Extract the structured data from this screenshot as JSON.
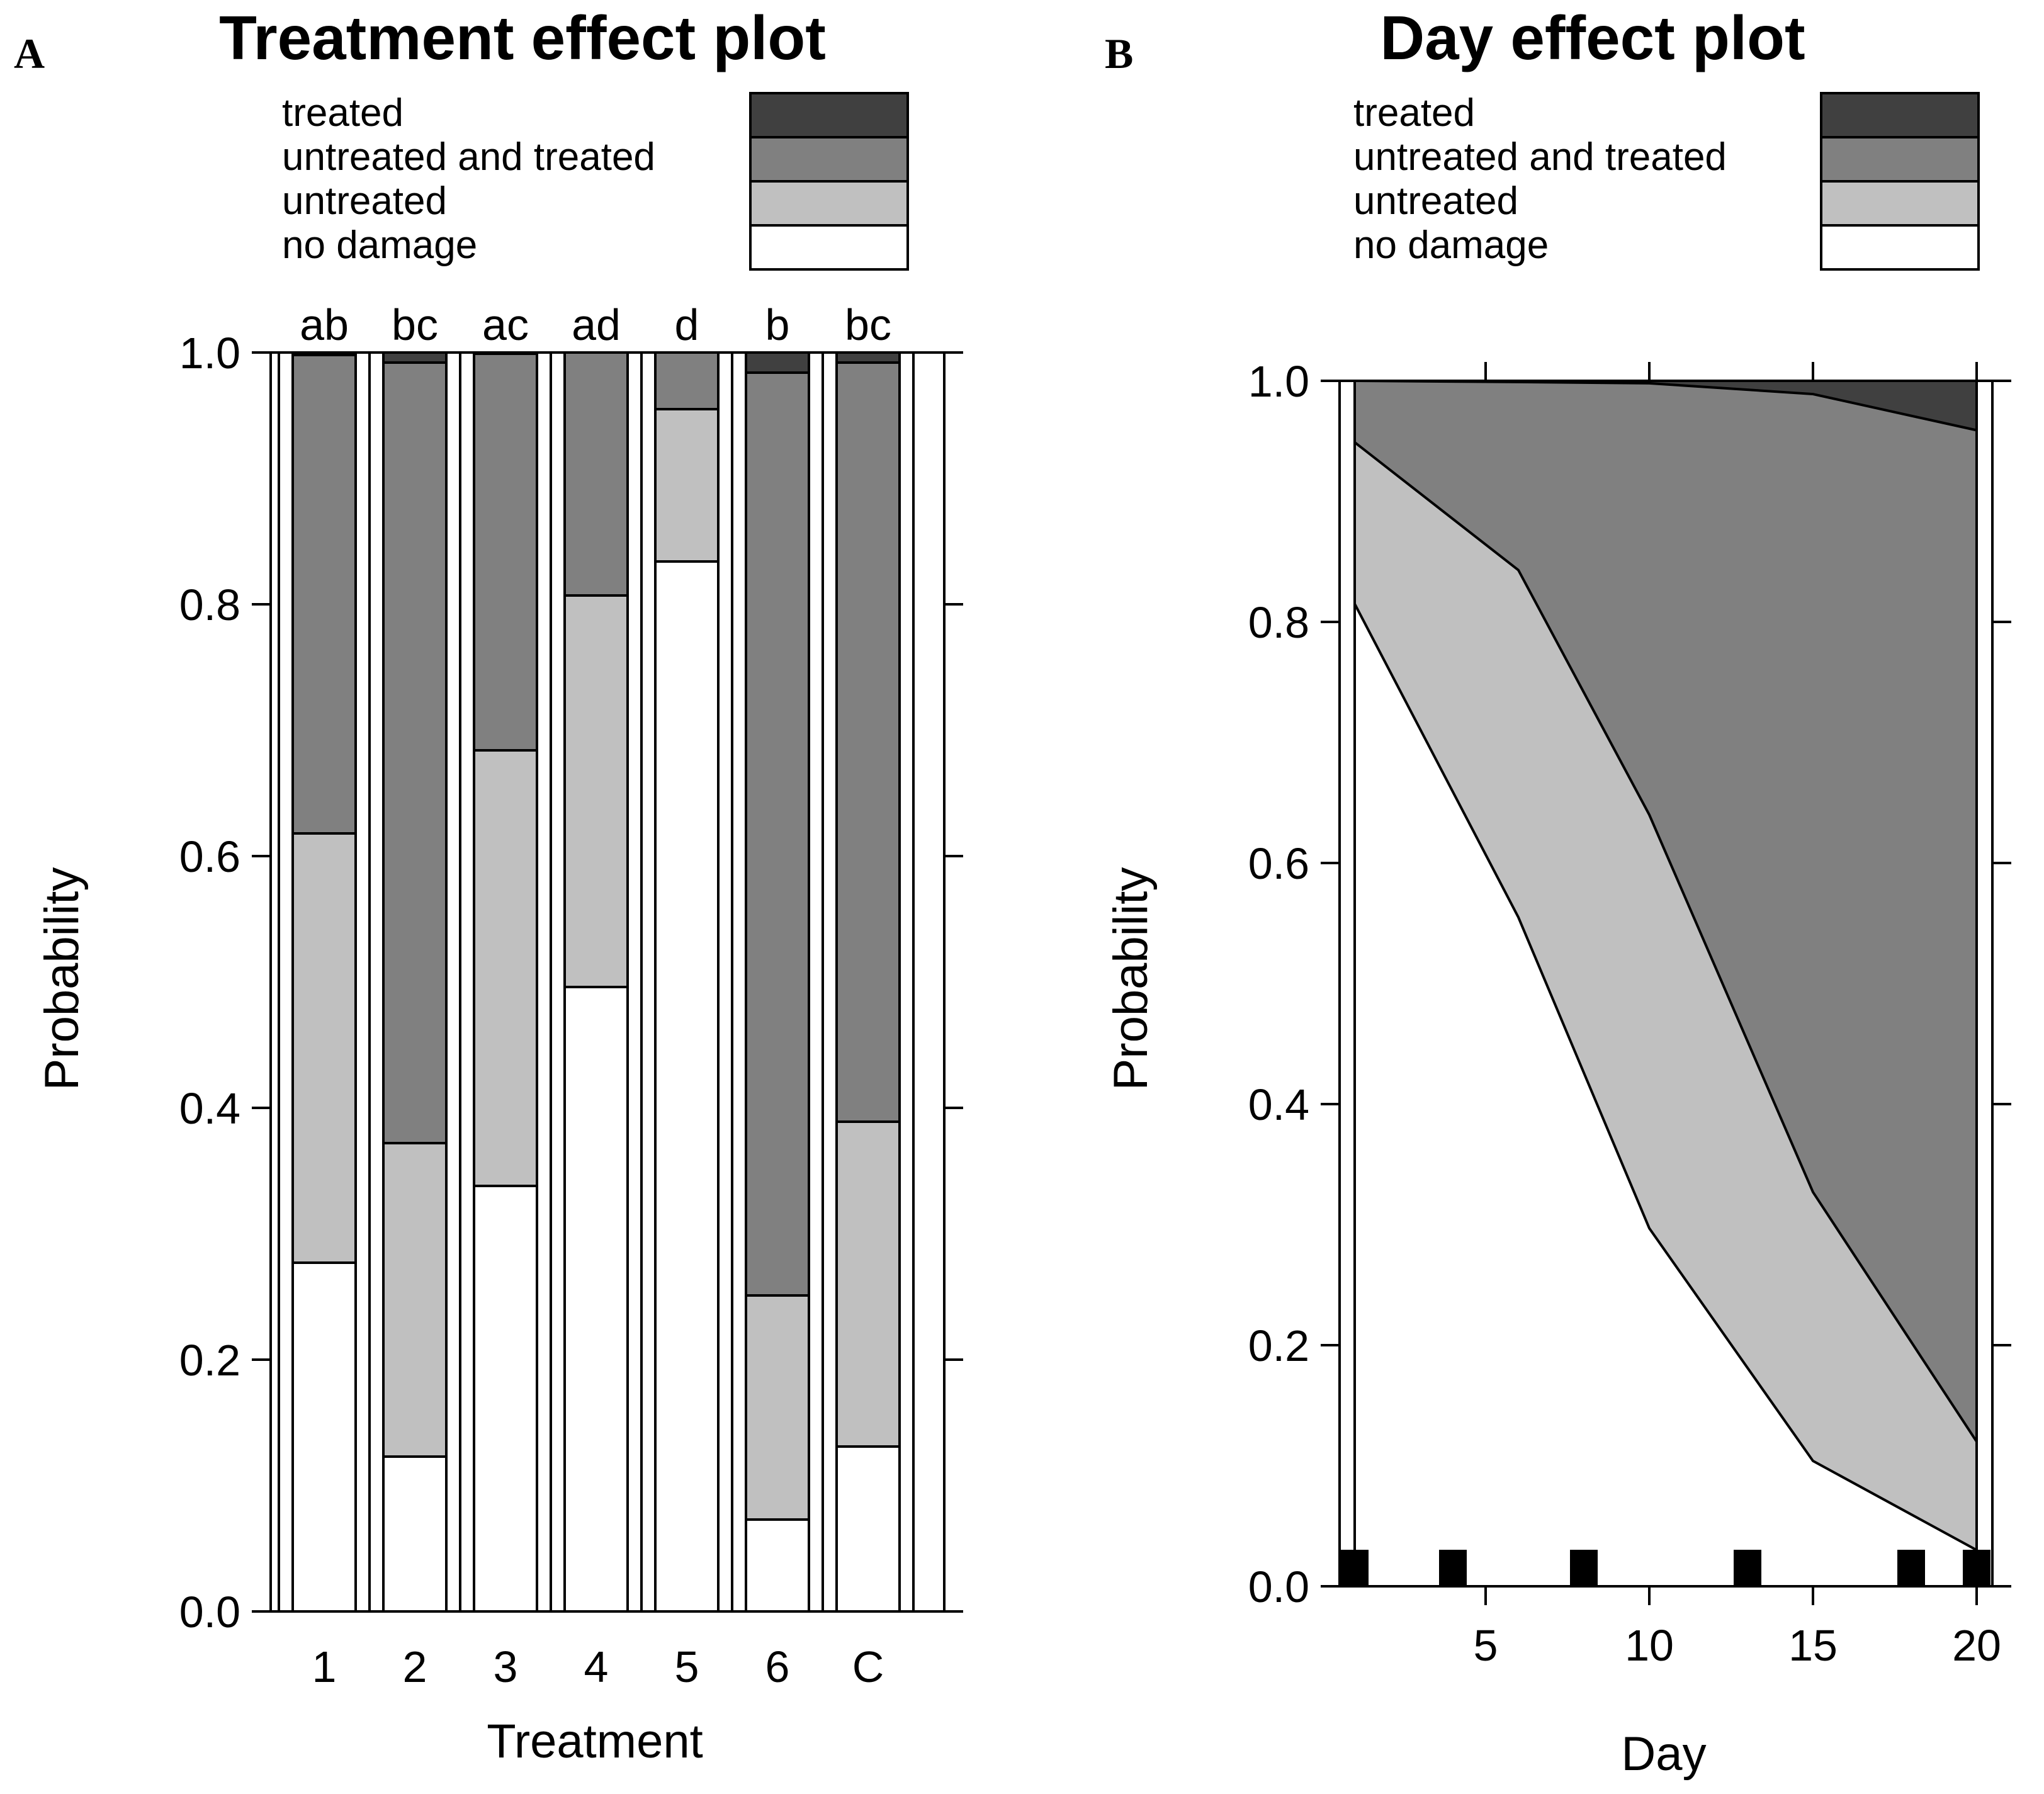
{
  "panel_labels": {
    "a": "A",
    "b": "B"
  },
  "legend": [
    {
      "label": "treated",
      "color": "#404040"
    },
    {
      "label": "untreated and treated",
      "color": "#808080"
    },
    {
      "label": "untreated",
      "color": "#c0c0c0"
    },
    {
      "label": "no damage",
      "color": "#ffffff"
    }
  ],
  "chart_data": [
    {
      "type": "bar",
      "stacked": true,
      "title": "Treatment effect plot",
      "xlabel": "Treatment",
      "ylabel": "Probability",
      "ylim": [
        0,
        1
      ],
      "yticks": [
        "0.0",
        "0.2",
        "0.4",
        "0.6",
        "0.8",
        "1.0"
      ],
      "categories": [
        "1",
        "2",
        "3",
        "4",
        "5",
        "6",
        "C"
      ],
      "group_letters": [
        "ab",
        "bc",
        "ac",
        "ad",
        "d",
        "b",
        "bc"
      ],
      "series": [
        {
          "name": "no damage",
          "values": [
            0.277,
            0.123,
            0.338,
            0.496,
            0.834,
            0.073,
            0.131
          ]
        },
        {
          "name": "untreated",
          "values": [
            0.341,
            0.249,
            0.346,
            0.311,
            0.121,
            0.178,
            0.258
          ]
        },
        {
          "name": "untreated and treated",
          "values": [
            0.38,
            0.62,
            0.315,
            0.193,
            0.045,
            0.733,
            0.603
          ]
        },
        {
          "name": "treated",
          "values": [
            0.002,
            0.008,
            0.001,
            0.0,
            0.0,
            0.016,
            0.008
          ]
        }
      ]
    },
    {
      "type": "area",
      "stacked": true,
      "title": "Day effect plot",
      "xlabel": "Day",
      "ylabel": "Probability",
      "ylim": [
        0,
        1
      ],
      "xlim": [
        0.5,
        20.5
      ],
      "yticks": [
        "0.0",
        "0.2",
        "0.4",
        "0.6",
        "0.8",
        "1.0"
      ],
      "xticks": [
        "5",
        "10",
        "15",
        "20"
      ],
      "x": [
        1,
        6,
        10,
        15,
        20
      ],
      "boundaries": [
        {
          "name": "no damage",
          "values": [
            0.815,
            0.555,
            0.297,
            0.104,
            0.03
          ]
        },
        {
          "name": "untreated",
          "values": [
            0.949,
            0.843,
            0.64,
            0.327,
            0.12
          ]
        },
        {
          "name": "untreated and treated",
          "values": [
            1.0,
            0.999,
            0.998,
            0.989,
            0.959
          ]
        }
      ],
      "rug": [
        1,
        4,
        8,
        13,
        18,
        20
      ]
    }
  ]
}
